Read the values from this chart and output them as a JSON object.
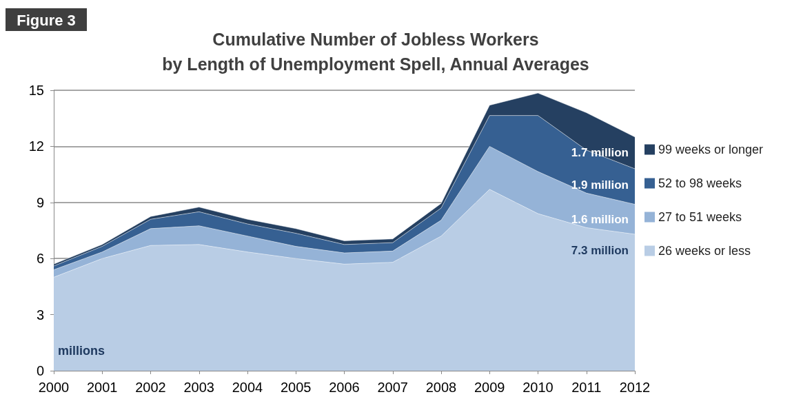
{
  "chart_data": {
    "type": "area",
    "stacked": true,
    "title": "Cumulative Number of Jobless Workers\nby Length of Unemployment Spell, Annual Averages",
    "categories": [
      "2000",
      "2001",
      "2002",
      "2003",
      "2004",
      "2005",
      "2006",
      "2007",
      "2008",
      "2009",
      "2010",
      "2011",
      "2012"
    ],
    "series": [
      {
        "name": "26 weeks or less",
        "color": "#b9cde5",
        "values": [
          5.0,
          6.0,
          6.7,
          6.75,
          6.35,
          6.0,
          5.7,
          5.8,
          7.2,
          9.7,
          8.4,
          7.65,
          7.3
        ],
        "value_labels": [
          null,
          null,
          null,
          null,
          null,
          null,
          null,
          null,
          null,
          null,
          null,
          null,
          "7.3 million"
        ]
      },
      {
        "name": "27 to 51 weeks",
        "color": "#95b3d7",
        "values": [
          0.4,
          0.35,
          0.9,
          1.0,
          0.85,
          0.65,
          0.6,
          0.6,
          0.85,
          2.3,
          2.25,
          1.85,
          1.6
        ],
        "value_labels": [
          null,
          null,
          null,
          null,
          null,
          null,
          null,
          null,
          null,
          null,
          null,
          null,
          "1.6 million"
        ]
      },
      {
        "name": "52 to 98 weeks",
        "color": "#366092",
        "values": [
          0.2,
          0.3,
          0.5,
          0.75,
          0.65,
          0.7,
          0.45,
          0.45,
          0.65,
          1.65,
          3.0,
          2.3,
          1.9
        ],
        "value_labels": [
          null,
          null,
          null,
          null,
          null,
          null,
          null,
          null,
          null,
          null,
          null,
          null,
          "1.9 million"
        ]
      },
      {
        "name": "99 weeks or longer",
        "color": "#254061",
        "values": [
          0.1,
          0.1,
          0.15,
          0.25,
          0.25,
          0.25,
          0.2,
          0.2,
          0.25,
          0.55,
          1.2,
          2.0,
          1.7
        ],
        "value_labels": [
          null,
          null,
          null,
          null,
          null,
          null,
          null,
          null,
          null,
          null,
          null,
          null,
          "1.7 million"
        ]
      }
    ],
    "ylim": [
      0,
      15
    ],
    "yticks": [
      0,
      3,
      6,
      9,
      12,
      15
    ],
    "grid": "y",
    "legend": "right",
    "marker": "none",
    "annotations": [
      "Figure 3",
      "millions"
    ]
  }
}
